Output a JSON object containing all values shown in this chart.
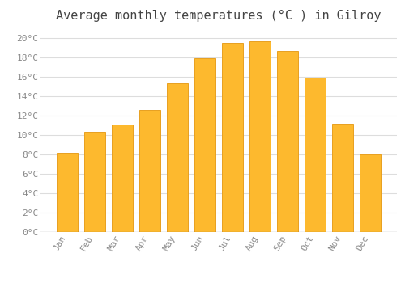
{
  "title": "Average monthly temperatures (°C ) in Gilroy",
  "months": [
    "Jan",
    "Feb",
    "Mar",
    "Apr",
    "May",
    "Jun",
    "Jul",
    "Aug",
    "Sep",
    "Oct",
    "Nov",
    "Dec"
  ],
  "values": [
    8.2,
    10.3,
    11.1,
    12.6,
    15.3,
    17.9,
    19.5,
    19.7,
    18.7,
    15.9,
    11.2,
    8.0
  ],
  "bar_color": "#FDB92E",
  "bar_edge_color": "#E8A020",
  "background_color": "#FFFFFF",
  "plot_background_color": "#FFFFFF",
  "grid_color": "#DDDDDD",
  "tick_label_color": "#888888",
  "title_color": "#444444",
  "ylim": [
    0,
    21
  ],
  "yticks": [
    0,
    2,
    4,
    6,
    8,
    10,
    12,
    14,
    16,
    18,
    20
  ],
  "title_fontsize": 11,
  "tick_fontsize": 8,
  "bar_width": 0.75
}
